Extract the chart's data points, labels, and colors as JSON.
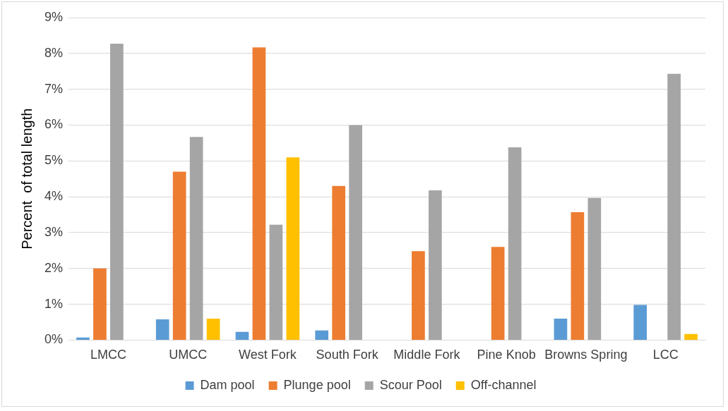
{
  "chart_data": {
    "type": "bar",
    "ylabel": "Percent  of total length",
    "categories": [
      "LMCC",
      "UMCC",
      "West Fork",
      "South Fork",
      "Middle Fork",
      "Pine Knob",
      "Browns Spring",
      "LCC"
    ],
    "series": [
      {
        "name": "Dam pool",
        "color": "#5b9bd5",
        "values": [
          0.07,
          0.58,
          0.23,
          0.27,
          0,
          0,
          0.6,
          0.98
        ]
      },
      {
        "name": "Plunge pool",
        "color": "#ed7d31",
        "values": [
          2.0,
          4.7,
          8.17,
          4.3,
          2.48,
          2.6,
          3.57,
          0
        ]
      },
      {
        "name": "Scour Pool",
        "color": "#a5a5a5",
        "values": [
          8.27,
          5.67,
          3.22,
          6.0,
          4.18,
          5.38,
          3.97,
          7.43
        ]
      },
      {
        "name": "Off-channel",
        "color": "#ffc000",
        "values": [
          0,
          0.6,
          5.1,
          0,
          0,
          0,
          0,
          0.17
        ]
      }
    ],
    "ylim": [
      0,
      9
    ],
    "yticks": [
      {
        "value": 0,
        "label": "0%"
      },
      {
        "value": 1,
        "label": "1%"
      },
      {
        "value": 2,
        "label": "2%"
      },
      {
        "value": 3,
        "label": "3%"
      },
      {
        "value": 4,
        "label": "4%"
      },
      {
        "value": 5,
        "label": "5%"
      },
      {
        "value": 6,
        "label": "6%"
      },
      {
        "value": 7,
        "label": "7%"
      },
      {
        "value": 8,
        "label": "8%"
      },
      {
        "value": 9,
        "label": "9%"
      }
    ],
    "grid": "y",
    "legend": "bottom"
  }
}
